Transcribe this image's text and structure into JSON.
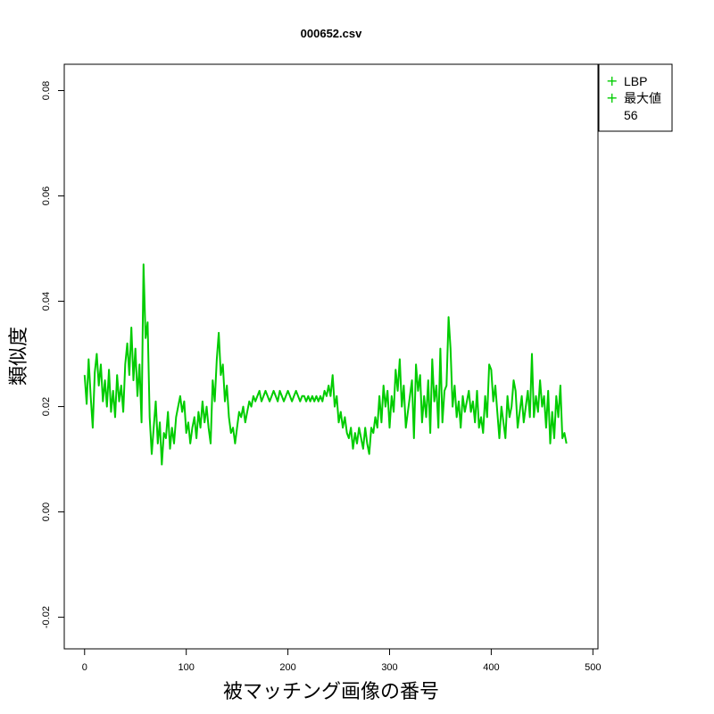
{
  "colors": {
    "series": "#00cc00",
    "axis": "#000000",
    "background": "#ffffff"
  },
  "chart_data": {
    "type": "line",
    "title": "000652.csv",
    "xlabel": "被マッチング画像の番号",
    "ylabel": "類似度",
    "xlim": [
      -20,
      505
    ],
    "ylim": [
      -0.026,
      0.085
    ],
    "xticks": [
      0,
      100,
      200,
      300,
      400,
      500
    ],
    "yticks": [
      -0.02,
      0.0,
      0.02,
      0.04,
      0.06,
      0.08
    ],
    "xtick_labels": [
      "0",
      "100",
      "200",
      "300",
      "400",
      "500"
    ],
    "ytick_labels": [
      "-0.02",
      "0.00",
      "0.02",
      "0.04",
      "0.06",
      "0.08"
    ],
    "legend": {
      "position": "top-right-outside",
      "entries": [
        "LBP",
        "最大値",
        "56"
      ]
    },
    "series": [
      {
        "name": "LBP",
        "x_start": 0,
        "x_step": 2,
        "values": [
          0.026,
          0.0205,
          0.029,
          0.022,
          0.016,
          0.0265,
          0.03,
          0.024,
          0.028,
          0.021,
          0.025,
          0.02,
          0.027,
          0.019,
          0.023,
          0.018,
          0.026,
          0.021,
          0.024,
          0.019,
          0.028,
          0.032,
          0.026,
          0.035,
          0.025,
          0.031,
          0.022,
          0.028,
          0.017,
          0.047,
          0.033,
          0.036,
          0.018,
          0.011,
          0.016,
          0.021,
          0.013,
          0.017,
          0.009,
          0.015,
          0.014,
          0.019,
          0.012,
          0.016,
          0.013,
          0.018,
          0.02,
          0.022,
          0.019,
          0.021,
          0.015,
          0.017,
          0.013,
          0.016,
          0.018,
          0.014,
          0.019,
          0.016,
          0.021,
          0.017,
          0.02,
          0.016,
          0.013,
          0.025,
          0.021,
          0.029,
          0.034,
          0.026,
          0.028,
          0.021,
          0.024,
          0.018,
          0.015,
          0.016,
          0.013,
          0.016,
          0.019,
          0.018,
          0.02,
          0.017,
          0.019,
          0.021,
          0.02,
          0.022,
          0.021,
          0.022,
          0.023,
          0.021,
          0.022,
          0.023,
          0.022,
          0.021,
          0.022,
          0.023,
          0.022,
          0.021,
          0.023,
          0.022,
          0.021,
          0.022,
          0.023,
          0.022,
          0.021,
          0.022,
          0.023,
          0.022,
          0.021,
          0.022,
          0.022,
          0.021,
          0.022,
          0.021,
          0.022,
          0.021,
          0.022,
          0.021,
          0.022,
          0.021,
          0.023,
          0.022,
          0.024,
          0.022,
          0.026,
          0.02,
          0.022,
          0.017,
          0.019,
          0.016,
          0.018,
          0.015,
          0.014,
          0.016,
          0.012,
          0.015,
          0.013,
          0.016,
          0.014,
          0.012,
          0.016,
          0.013,
          0.011,
          0.016,
          0.015,
          0.018,
          0.016,
          0.022,
          0.017,
          0.024,
          0.02,
          0.023,
          0.016,
          0.022,
          0.019,
          0.027,
          0.023,
          0.029,
          0.02,
          0.024,
          0.016,
          0.019,
          0.022,
          0.025,
          0.014,
          0.028,
          0.023,
          0.026,
          0.017,
          0.022,
          0.018,
          0.025,
          0.015,
          0.029,
          0.021,
          0.024,
          0.016,
          0.031,
          0.017,
          0.023,
          0.024,
          0.037,
          0.031,
          0.02,
          0.024,
          0.018,
          0.021,
          0.016,
          0.022,
          0.019,
          0.021,
          0.023,
          0.019,
          0.021,
          0.017,
          0.023,
          0.016,
          0.018,
          0.015,
          0.022,
          0.018,
          0.028,
          0.027,
          0.021,
          0.024,
          0.019,
          0.014,
          0.02,
          0.017,
          0.014,
          0.022,
          0.018,
          0.02,
          0.025,
          0.023,
          0.016,
          0.019,
          0.022,
          0.017,
          0.02,
          0.023,
          0.018,
          0.03,
          0.018,
          0.022,
          0.019,
          0.025,
          0.02,
          0.022,
          0.016,
          0.023,
          0.013,
          0.019,
          0.014,
          0.022,
          0.018,
          0.024,
          0.014,
          0.015,
          0.013
        ]
      }
    ]
  }
}
